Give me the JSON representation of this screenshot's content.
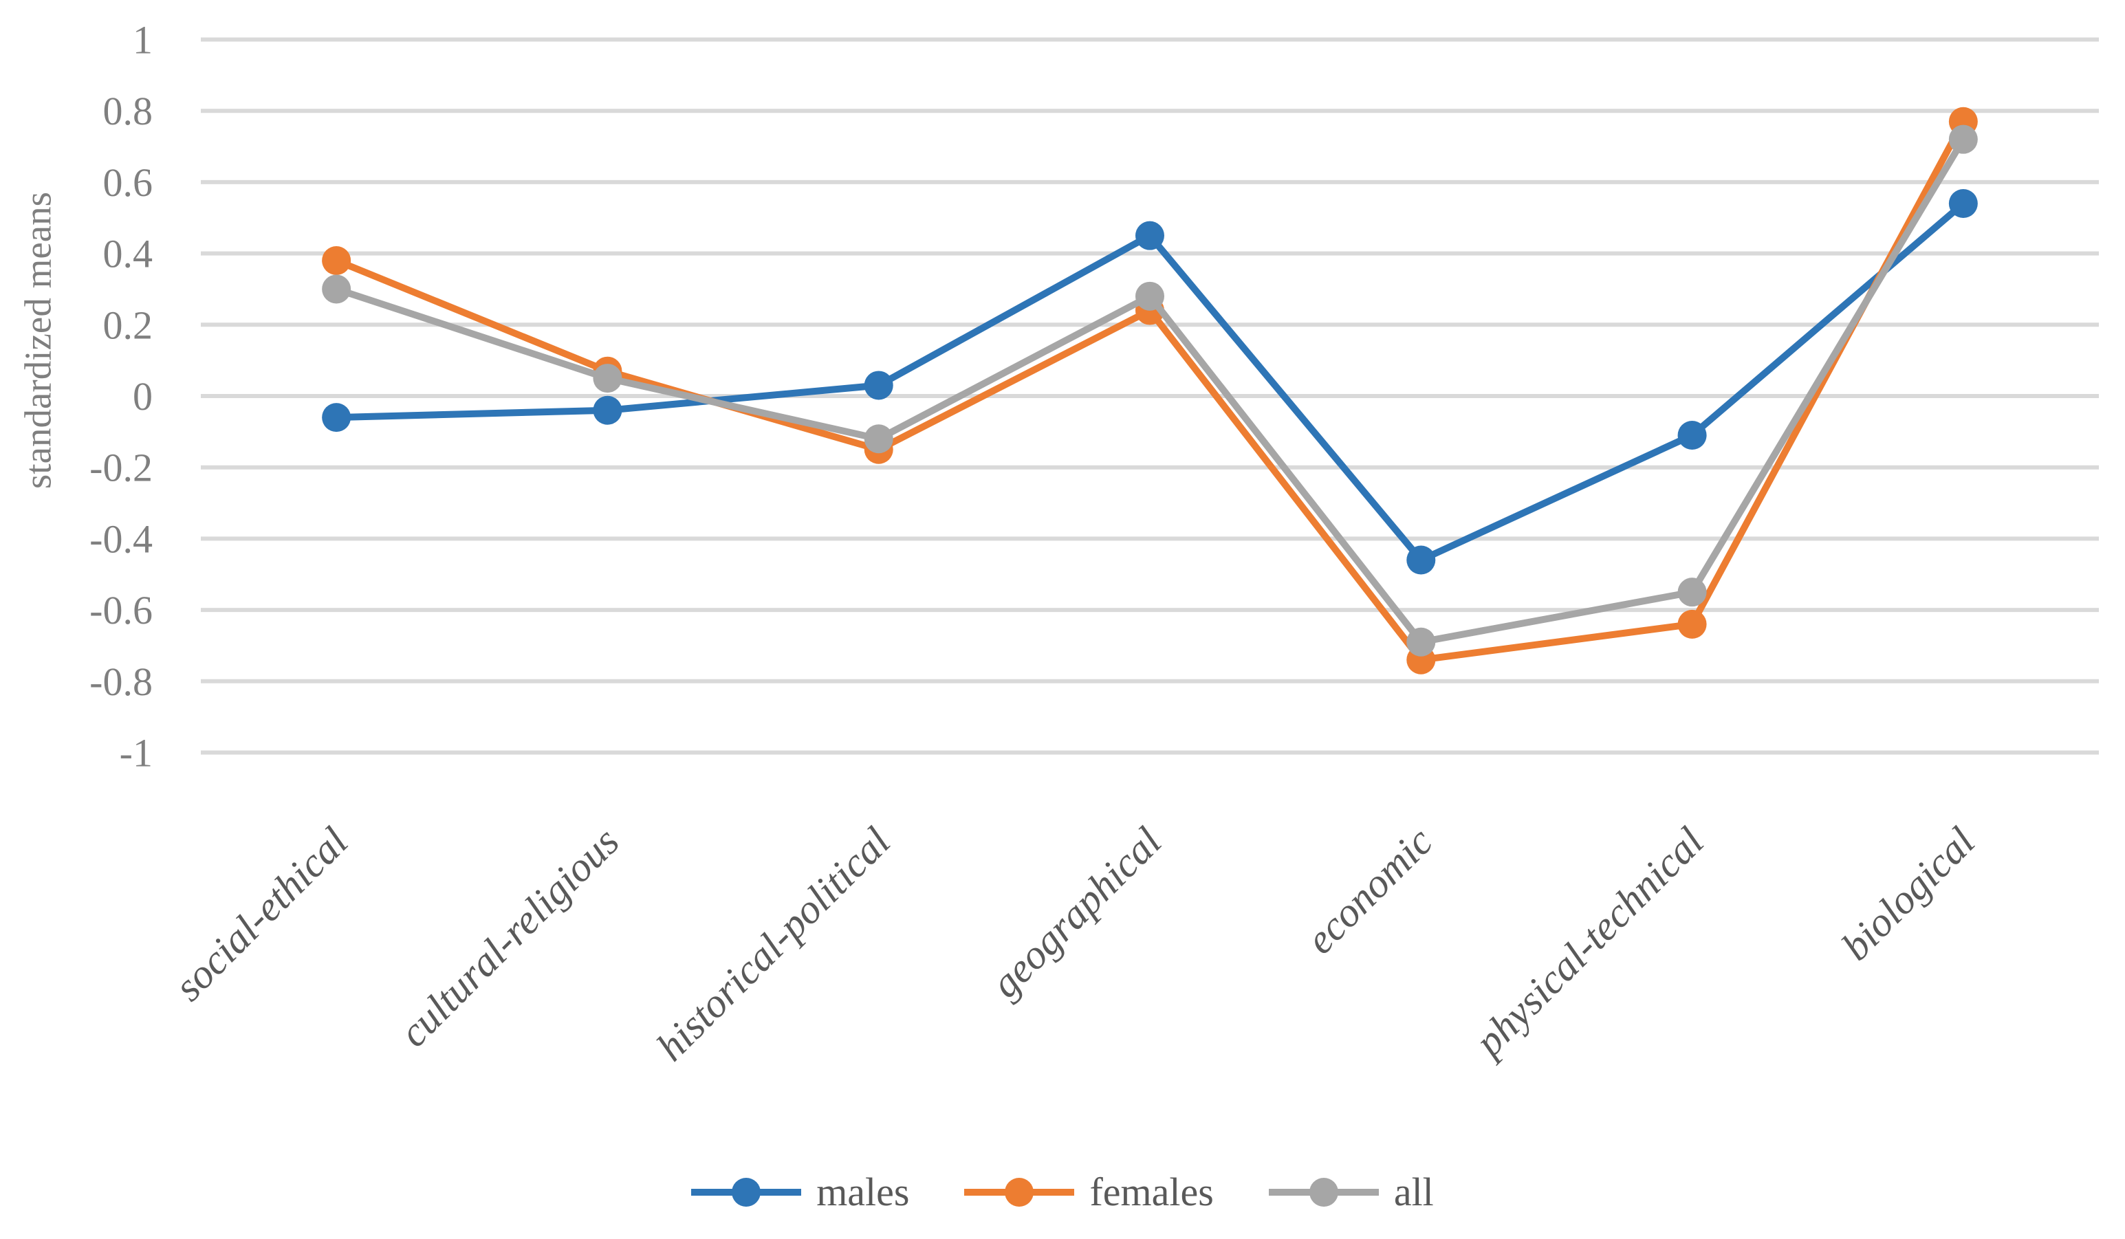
{
  "chart_data": {
    "type": "line",
    "title": "",
    "ylabel": "standardized means",
    "xlabel": "",
    "categories": [
      "social-ethical",
      "cultural-religious",
      "historical-political",
      "geographical",
      "economic",
      "physical-technical",
      "biological"
    ],
    "series": [
      {
        "name": "males",
        "color": "#2E75B6",
        "values": [
          -0.06,
          -0.04,
          0.03,
          0.45,
          -0.46,
          -0.11,
          0.54
        ]
      },
      {
        "name": "females",
        "color": "#ED7D31",
        "values": [
          0.38,
          0.07,
          -0.15,
          0.24,
          -0.74,
          -0.64,
          0.77
        ]
      },
      {
        "name": "all",
        "color": "#A6A6A6",
        "values": [
          0.3,
          0.05,
          -0.12,
          0.28,
          -0.69,
          -0.55,
          0.72
        ]
      }
    ],
    "ylim": [
      -1,
      1
    ],
    "ytick_step": 0.2,
    "ytick_labels": [
      "1",
      "0.8",
      "0.6",
      "0.4",
      "0.2",
      "0",
      "-0.2",
      "-0.4",
      "-0.6",
      "-0.8",
      "-1"
    ],
    "grid": true,
    "gridline_color": "#D9D9D9",
    "tick_label_color": "#7F7F7F",
    "category_label_color": "#595959",
    "legend_position": "bottom",
    "marker": "circle",
    "legend": [
      "males",
      "females",
      "all"
    ]
  }
}
